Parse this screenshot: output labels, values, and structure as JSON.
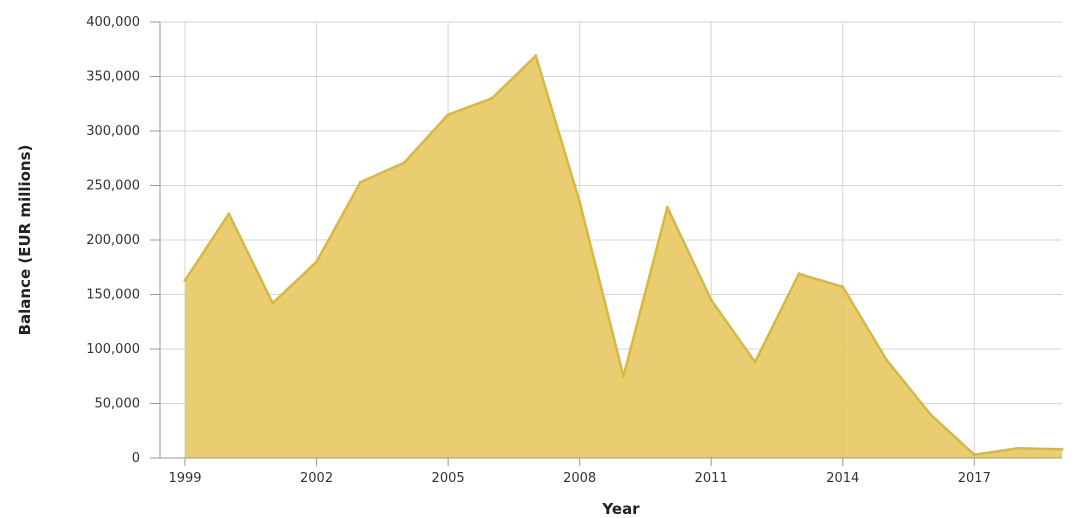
{
  "chart_data": {
    "type": "area",
    "xlabel": "Year",
    "ylabel": "Balance (EUR millions)",
    "x": [
      1999,
      2000,
      2001,
      2002,
      2003,
      2004,
      2005,
      2006,
      2007,
      2008,
      2009,
      2010,
      2011,
      2012,
      2013,
      2014,
      2015,
      2016,
      2017,
      2018,
      2019
    ],
    "series": [
      {
        "values": [
          163000,
          224000,
          142000,
          180000,
          253000,
          271000,
          315000,
          330000,
          369000,
          235000,
          75000,
          230000,
          145000,
          88000,
          169000,
          157000,
          90000,
          40000,
          3000,
          9000,
          8000
        ]
      }
    ],
    "xticks": [
      "1999",
      "2002",
      "2005",
      "2008",
      "2011",
      "2014",
      "2017"
    ],
    "yticks": [
      "0",
      "50,000",
      "100,000",
      "150,000",
      "200,000",
      "250,000",
      "300,000",
      "350,000",
      "400,000"
    ],
    "ylim": [
      0,
      400000
    ],
    "grid": true,
    "colors": {
      "fill": "#e8c862",
      "line": "#d9b83a"
    }
  }
}
